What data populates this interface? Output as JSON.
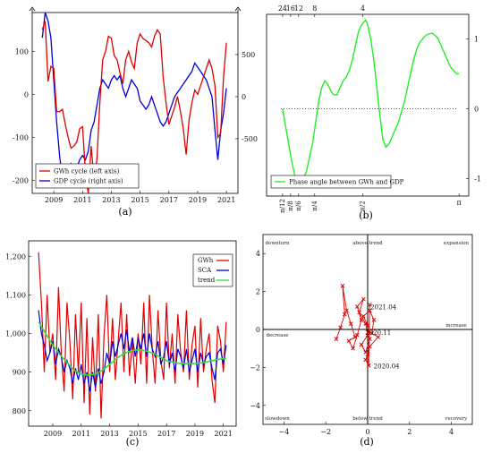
{
  "colors": {
    "gwh": "#e00000",
    "gdp": "#0000dd",
    "sca": "#0000dd",
    "trend": "#33dd33",
    "phase": "#22ee22"
  },
  "chart_data": [
    {
      "panel": "(a)",
      "type": "line",
      "xlim": [
        2007.5,
        2021.8
      ],
      "ylim_left": [
        -230,
        190
      ],
      "ylim_right": [
        -1150,
        1000
      ],
      "x_ticks": [
        2009,
        2011,
        2013,
        2015,
        2017,
        2019,
        2021
      ],
      "y_ticks_left": [
        -200,
        -100,
        0,
        100
      ],
      "y_ticks_right": [
        -500,
        0,
        500
      ],
      "legend_position": "bottom-left",
      "series": [
        {
          "name": "GWh cycle (left axis)",
          "axis": "left",
          "x": [
            2008.2,
            2008.4,
            2008.6,
            2008.8,
            2009.0,
            2009.2,
            2009.4,
            2009.6,
            2009.8,
            2010.0,
            2010.2,
            2010.4,
            2010.6,
            2010.8,
            2011.0,
            2011.2,
            2011.4,
            2011.6,
            2011.8,
            2012.0,
            2012.2,
            2012.4,
            2012.6,
            2012.8,
            2013.0,
            2013.2,
            2013.4,
            2013.6,
            2013.8,
            2014.0,
            2014.2,
            2014.4,
            2014.6,
            2014.8,
            2015.0,
            2015.2,
            2015.4,
            2015.6,
            2015.8,
            2016.0,
            2016.2,
            2016.4,
            2016.6,
            2016.8,
            2017.0,
            2017.2,
            2017.4,
            2017.6,
            2017.8,
            2018.0,
            2018.2,
            2018.4,
            2018.6,
            2018.8,
            2019.0,
            2019.2,
            2019.4,
            2019.6,
            2019.8,
            2020.0,
            2020.2,
            2020.4,
            2020.6,
            2020.8,
            2021.0
          ],
          "y": [
            150,
            170,
            30,
            65,
            60,
            -40,
            -40,
            -35,
            -70,
            -100,
            -125,
            -120,
            -110,
            -80,
            -75,
            -180,
            -230,
            -120,
            -200,
            -150,
            -20,
            80,
            100,
            135,
            130,
            90,
            80,
            50,
            25,
            80,
            100,
            75,
            60,
            120,
            140,
            130,
            125,
            120,
            110,
            135,
            150,
            140,
            40,
            -20,
            -70,
            -50,
            -30,
            -5,
            -40,
            -80,
            -140,
            -60,
            -20,
            10,
            0,
            20,
            40,
            60,
            80,
            60,
            20,
            -100,
            -90,
            40,
            120
          ]
        },
        {
          "name": "GDP cycle (right axis)",
          "axis": "right",
          "x": [
            2008.2,
            2008.4,
            2008.6,
            2008.8,
            2009.0,
            2009.2,
            2009.4,
            2009.6,
            2009.8,
            2010.0,
            2010.2,
            2010.4,
            2010.6,
            2010.8,
            2011.0,
            2011.2,
            2011.4,
            2011.6,
            2011.8,
            2012.0,
            2012.2,
            2012.4,
            2012.6,
            2012.8,
            2013.0,
            2013.2,
            2013.4,
            2013.6,
            2013.8,
            2014.0,
            2014.2,
            2014.4,
            2014.6,
            2014.8,
            2015.0,
            2015.2,
            2015.4,
            2015.6,
            2015.8,
            2016.0,
            2016.2,
            2016.4,
            2016.6,
            2016.8,
            2017.0,
            2017.2,
            2017.4,
            2017.6,
            2017.8,
            2018.0,
            2018.2,
            2018.4,
            2018.6,
            2018.8,
            2019.0,
            2019.2,
            2019.4,
            2019.6,
            2019.8,
            2020.0,
            2020.2,
            2020.4,
            2020.6,
            2020.8,
            2021.0
          ],
          "y": [
            700,
            1000,
            900,
            700,
            200,
            -300,
            -700,
            -1000,
            -1050,
            -900,
            -800,
            -900,
            -850,
            -750,
            -700,
            -750,
            -650,
            -400,
            -300,
            -100,
            100,
            200,
            150,
            100,
            200,
            250,
            200,
            250,
            100,
            0,
            100,
            200,
            150,
            100,
            -50,
            -100,
            -150,
            -100,
            0,
            -100,
            -200,
            -300,
            -350,
            -300,
            -200,
            -100,
            0,
            50,
            100,
            150,
            200,
            250,
            300,
            400,
            350,
            300,
            250,
            200,
            100,
            0,
            -400,
            -750,
            -400,
            -200,
            100
          ]
        }
      ]
    },
    {
      "panel": "(b)",
      "type": "line",
      "xlim": [
        0.0,
        3.3
      ],
      "ylim": [
        -1.25,
        1.35
      ],
      "y_ticks": [
        -1,
        0,
        1
      ],
      "top_ticks": [
        "24",
        "16",
        "12",
        "8",
        "4"
      ],
      "x_ticks": [
        "π/12",
        "π/8",
        "π/6",
        "π/4",
        "π/2",
        "π"
      ],
      "legend_position": "bottom-left",
      "series": [
        {
          "name": "Phase angle between GWh and GDP",
          "x": [
            0.26,
            0.3,
            0.34,
            0.38,
            0.42,
            0.46,
            0.5,
            0.55,
            0.6,
            0.65,
            0.7,
            0.75,
            0.8,
            0.85,
            0.9,
            0.95,
            1.0,
            1.05,
            1.1,
            1.15,
            1.2,
            1.25,
            1.3,
            1.35,
            1.4,
            1.45,
            1.5,
            1.55,
            1.6,
            1.62,
            1.65,
            1.7,
            1.75,
            1.8,
            1.85,
            1.9,
            1.95,
            2.0,
            2.05,
            2.1,
            2.15,
            2.2,
            2.25,
            2.3,
            2.35,
            2.4,
            2.45,
            2.5,
            2.55,
            2.6,
            2.65,
            2.7,
            2.75,
            2.8,
            2.85,
            2.9,
            2.95,
            3.0,
            3.05,
            3.1,
            3.14
          ],
          "y": [
            0.0,
            -0.2,
            -0.4,
            -0.6,
            -0.8,
            -0.95,
            -1.05,
            -1.05,
            -1.0,
            -0.9,
            -0.7,
            -0.5,
            -0.2,
            0.1,
            0.3,
            0.4,
            0.35,
            0.25,
            0.2,
            0.2,
            0.3,
            0.4,
            0.45,
            0.55,
            0.7,
            0.9,
            1.1,
            1.2,
            1.25,
            1.27,
            1.2,
            1.0,
            0.7,
            0.3,
            -0.1,
            -0.45,
            -0.55,
            -0.5,
            -0.4,
            -0.3,
            -0.2,
            -0.05,
            0.1,
            0.3,
            0.5,
            0.7,
            0.85,
            0.95,
            1.0,
            1.05,
            1.07,
            1.08,
            1.05,
            1.0,
            0.9,
            0.8,
            0.7,
            0.6,
            0.55,
            0.5,
            0.5
          ]
        }
      ]
    },
    {
      "panel": "(c)",
      "type": "line",
      "xlim": [
        2007.3,
        2021.9
      ],
      "ylim": [
        760,
        1240
      ],
      "x_ticks": [
        2009,
        2011,
        2013,
        2015,
        2017,
        2019,
        2021
      ],
      "y_ticks": [
        800,
        900,
        1000,
        1100,
        1200
      ],
      "legend_position": "top-right",
      "series": [
        {
          "name": "GWh",
          "x": [
            2008.0,
            2008.2,
            2008.4,
            2008.6,
            2008.8,
            2009.0,
            2009.2,
            2009.4,
            2009.6,
            2009.8,
            2010.0,
            2010.2,
            2010.4,
            2010.6,
            2010.8,
            2011.0,
            2011.2,
            2011.4,
            2011.6,
            2011.8,
            2012.0,
            2012.2,
            2012.4,
            2012.6,
            2012.8,
            2013.0,
            2013.2,
            2013.4,
            2013.6,
            2013.8,
            2014.0,
            2014.2,
            2014.4,
            2014.6,
            2014.8,
            2015.0,
            2015.2,
            2015.4,
            2015.6,
            2015.8,
            2016.0,
            2016.2,
            2016.4,
            2016.6,
            2016.8,
            2017.0,
            2017.2,
            2017.4,
            2017.6,
            2017.8,
            2018.0,
            2018.2,
            2018.4,
            2018.6,
            2018.8,
            2019.0,
            2019.2,
            2019.4,
            2019.6,
            2019.8,
            2020.0,
            2020.2,
            2020.4,
            2020.6,
            2020.8,
            2021.0,
            2021.2
          ],
          "y": [
            1210,
            1080,
            900,
            1100,
            950,
            1000,
            880,
            1120,
            950,
            850,
            1080,
            980,
            830,
            1050,
            900,
            1080,
            820,
            1040,
            790,
            990,
            850,
            1050,
            780,
            990,
            1100,
            900,
            1040,
            880,
            980,
            1080,
            900,
            1050,
            890,
            980,
            870,
            1000,
            920,
            1080,
            870,
            1100,
            960,
            870,
            1060,
            930,
            880,
            1080,
            910,
            1000,
            870,
            1050,
            950,
            900,
            1060,
            880,
            970,
            1020,
            860,
            1040,
            900,
            960,
            1000,
            880,
            820,
            1020,
            980,
            900,
            1030
          ]
        },
        {
          "name": "SCA",
          "x": [
            2008.0,
            2008.2,
            2008.4,
            2008.6,
            2008.8,
            2009.0,
            2009.2,
            2009.4,
            2009.6,
            2009.8,
            2010.0,
            2010.2,
            2010.4,
            2010.6,
            2010.8,
            2011.0,
            2011.2,
            2011.4,
            2011.6,
            2011.8,
            2012.0,
            2012.2,
            2012.4,
            2012.6,
            2012.8,
            2013.0,
            2013.2,
            2013.4,
            2013.6,
            2013.8,
            2014.0,
            2014.2,
            2014.4,
            2014.6,
            2014.8,
            2015.0,
            2015.2,
            2015.4,
            2015.6,
            2015.8,
            2016.0,
            2016.2,
            2016.4,
            2016.6,
            2016.8,
            2017.0,
            2017.2,
            2017.4,
            2017.6,
            2017.8,
            2018.0,
            2018.2,
            2018.4,
            2018.6,
            2018.8,
            2019.0,
            2019.2,
            2019.4,
            2019.6,
            2019.8,
            2020.0,
            2020.2,
            2020.4,
            2020.6,
            2020.8,
            2021.0,
            2021.2
          ],
          "y": [
            1060,
            1000,
            970,
            930,
            950,
            980,
            920,
            960,
            940,
            900,
            930,
            910,
            870,
            910,
            880,
            920,
            870,
            900,
            850,
            900,
            860,
            910,
            870,
            900,
            950,
            920,
            980,
            940,
            970,
            1000,
            960,
            1010,
            950,
            990,
            940,
            990,
            960,
            1000,
            940,
            1000,
            960,
            940,
            980,
            920,
            940,
            980,
            920,
            950,
            900,
            960,
            940,
            910,
            960,
            900,
            930,
            960,
            900,
            950,
            920,
            940,
            950,
            910,
            880,
            950,
            960,
            920,
            970
          ]
        },
        {
          "name": "trend",
          "x": [
            2008.0,
            2008.5,
            2009.0,
            2009.5,
            2010.0,
            2010.5,
            2011.0,
            2011.5,
            2012.0,
            2012.5,
            2013.0,
            2013.5,
            2014.0,
            2014.5,
            2015.0,
            2015.5,
            2016.0,
            2016.5,
            2017.0,
            2017.5,
            2018.0,
            2018.5,
            2019.0,
            2019.5,
            2020.0,
            2020.5,
            2021.0,
            2021.2
          ],
          "y": [
            1030,
            1000,
            970,
            945,
            925,
            905,
            895,
            892,
            895,
            905,
            920,
            935,
            948,
            955,
            958,
            955,
            950,
            940,
            930,
            925,
            922,
            922,
            922,
            924,
            928,
            932,
            935,
            936
          ]
        }
      ]
    },
    {
      "panel": "(d)",
      "type": "scatter",
      "xlim": [
        -5,
        5
      ],
      "ylim": [
        -5,
        5
      ],
      "x_ticks": [
        -4,
        -2,
        0,
        2,
        4
      ],
      "y_ticks": [
        -4,
        -2,
        0,
        2,
        4
      ],
      "quadrant_labels": [
        "downturn",
        "above trend",
        "expansion",
        "decrease",
        "increase",
        "slowdown",
        "below trend",
        "recovery"
      ],
      "annotations": [
        {
          "text": "2021.04",
          "x": 0.05,
          "y": 1.2
        },
        {
          "text": "2020.11",
          "x": -0.2,
          "y": -0.15
        },
        {
          "text": "2020.04",
          "x": 0.2,
          "y": -1.9
        }
      ],
      "series": [
        {
          "name": "",
          "marker": "x",
          "x": [
            -1.5,
            -1.3,
            -1.1,
            -1.2,
            -1.0,
            -0.8,
            -0.6,
            -0.9,
            -0.7,
            -0.5,
            -0.3,
            -0.5,
            -0.2,
            -0.4,
            -0.1,
            0.0,
            -0.3,
            -0.1,
            0.1,
            0.0,
            -0.2,
            0.1,
            0.3,
            0.2,
            0.5,
            0.1,
            0.0,
            -0.1,
            0.05,
            0.1
          ],
          "y": [
            -0.5,
            0.1,
            0.8,
            2.3,
            1.0,
            0.3,
            -0.4,
            -0.6,
            -1.0,
            -0.3,
            0.5,
            1.2,
            1.6,
            0.9,
            0.3,
            -0.3,
            -0.8,
            -1.2,
            -0.5,
            0.2,
            0.7,
            1.0,
            0.5,
            -0.2,
            -0.4,
            -0.9,
            -1.3,
            -1.6,
            -1.9,
            1.3
          ]
        }
      ]
    }
  ]
}
